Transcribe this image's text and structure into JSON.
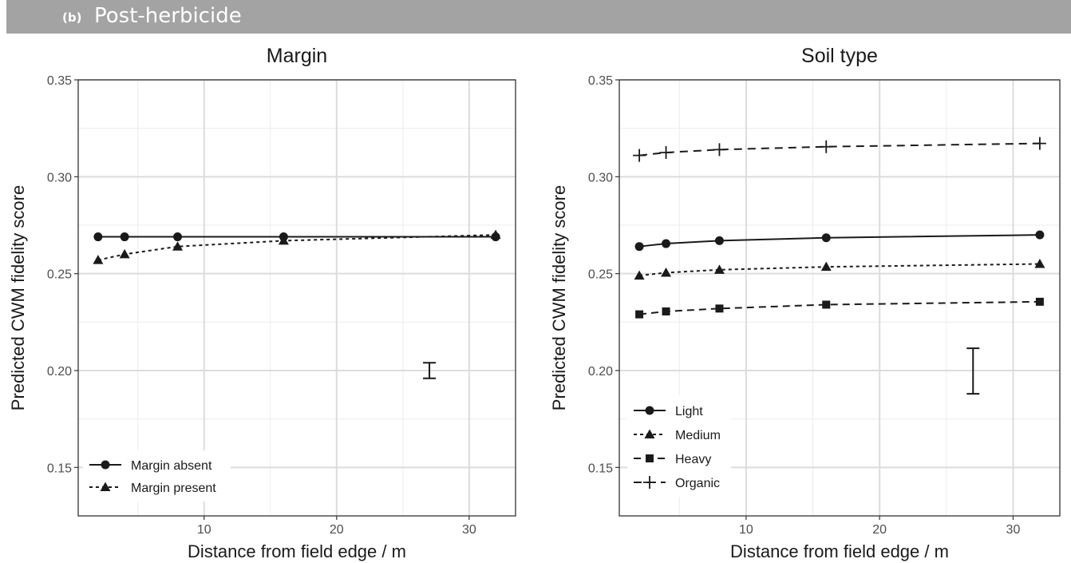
{
  "header": {
    "tag": "(b)",
    "title": "Post-herbicide",
    "color": "#a3a3a3"
  },
  "chart_data": [
    {
      "type": "line",
      "title": "Margin",
      "xlabel": "Distance from field edge / m",
      "ylabel": "Predicted CWM fidelity score",
      "xlim": [
        0.5,
        33.5
      ],
      "ylim": [
        0.125,
        0.35
      ],
      "xticks": [
        10,
        20,
        30
      ],
      "xtick_labels": [
        "10",
        "20",
        "30"
      ],
      "yticks": [
        0.15,
        0.2,
        0.25,
        0.3,
        0.35
      ],
      "ytick_labels": [
        "0.15",
        "0.20",
        "0.25",
        "0.30",
        "0.35"
      ],
      "grid": true,
      "legend_position": "bottom-left",
      "x": [
        2,
        4,
        8,
        16,
        32
      ],
      "series": [
        {
          "name": "Margin absent",
          "marker": "circle",
          "dash": "solid",
          "values": [
            0.269,
            0.269,
            0.269,
            0.269,
            0.269
          ]
        },
        {
          "name": "Margin present",
          "marker": "triangle",
          "dash": "dotted",
          "values": [
            0.257,
            0.26,
            0.264,
            0.267,
            0.27
          ]
        }
      ],
      "error_bar": {
        "x": 27,
        "low": 0.196,
        "high": 0.204
      }
    },
    {
      "type": "line",
      "title": "Soil type",
      "xlabel": "Distance from field edge / m",
      "ylabel": "Predicted CWM fidelity score",
      "xlim": [
        0.5,
        33.5
      ],
      "ylim": [
        0.125,
        0.35
      ],
      "xticks": [
        10,
        20,
        30
      ],
      "xtick_labels": [
        "10",
        "20",
        "30"
      ],
      "yticks": [
        0.15,
        0.2,
        0.25,
        0.3,
        0.35
      ],
      "ytick_labels": [
        "0.15",
        "0.20",
        "0.25",
        "0.30",
        "0.35"
      ],
      "grid": true,
      "legend_position": "bottom-left",
      "x": [
        2,
        4,
        8,
        16,
        32
      ],
      "series": [
        {
          "name": "Light",
          "marker": "circle",
          "dash": "solid",
          "values": [
            0.264,
            0.2655,
            0.267,
            0.2685,
            0.27
          ]
        },
        {
          "name": "Medium",
          "marker": "triangle",
          "dash": "dotted",
          "values": [
            0.249,
            0.2505,
            0.252,
            0.2535,
            0.255
          ]
        },
        {
          "name": "Heavy",
          "marker": "square",
          "dash": "dashed",
          "values": [
            0.229,
            0.2305,
            0.232,
            0.234,
            0.2355
          ]
        },
        {
          "name": "Organic",
          "marker": "plus",
          "dash": "longdash",
          "values": [
            0.311,
            0.3125,
            0.314,
            0.3155,
            0.3172
          ]
        }
      ],
      "error_bar": {
        "x": 27,
        "low": 0.188,
        "high": 0.2115
      }
    }
  ]
}
